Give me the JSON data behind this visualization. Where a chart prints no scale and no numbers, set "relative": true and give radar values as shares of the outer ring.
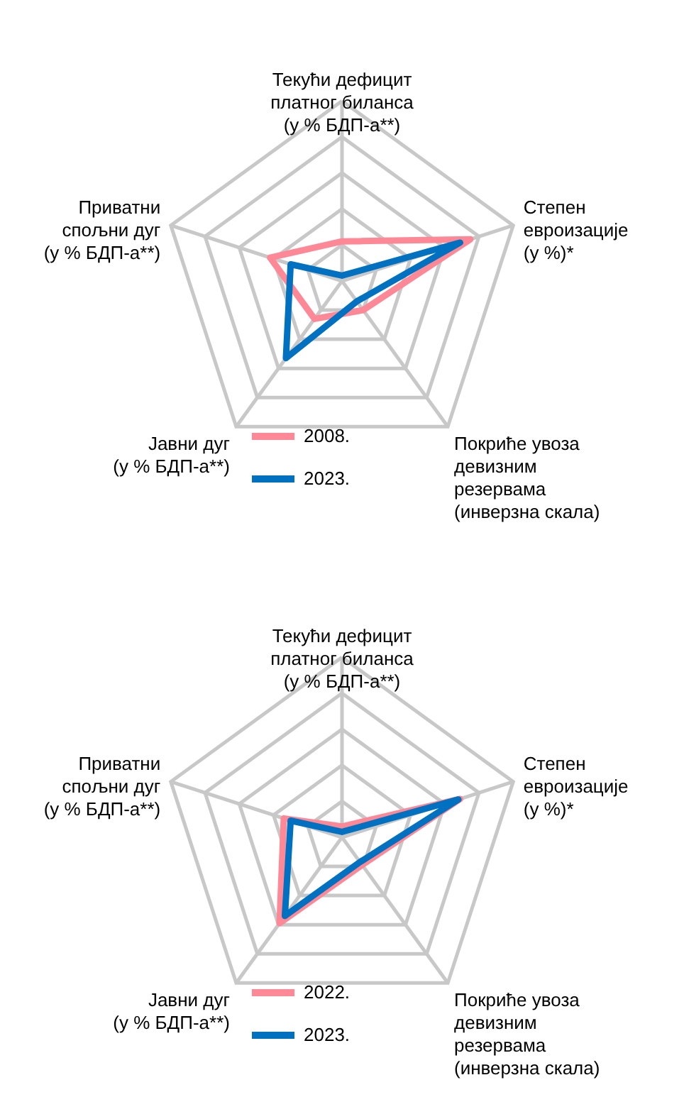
{
  "chart_data": [
    {
      "type": "radar",
      "relative": true,
      "grid": true,
      "legend": "bottom",
      "line_style": "solid",
      "categories": [
        "Текући дефицит\nплатног биланса\n(у % БДП-а**)",
        "Степен\nевроизације\n(у %)*",
        "Покриће увоза\nдевизним\nрезервама\n(инверзна скала)",
        "Јавни дуг\n(у % БДП-а**)",
        "Приватни\nспољни дуг\n(у % БДП-а**)"
      ],
      "series": [
        {
          "name": "2008.",
          "color": "#ff8896",
          "values": [
            0.22,
            0.75,
            0.2,
            0.26,
            0.42
          ]
        },
        {
          "name": "2023.",
          "color": "#0070c0",
          "values": [
            0.03,
            0.69,
            0.14,
            0.53,
            0.3
          ]
        }
      ]
    },
    {
      "type": "radar",
      "relative": true,
      "grid": true,
      "legend": "bottom",
      "line_style": "solid",
      "categories": [
        "Текући дефицит\nплатног биланса\n(у % БДП-а**)",
        "Степен\nевроизације\n(у %)*",
        "Покриће увоза\nдевизним\nрезервама\n(инверзна скала)",
        "Јавни дуг\n(у % БДП-а**)",
        "Приватни\nспољни дуг\n(у % БДП-а**)"
      ],
      "series": [
        {
          "name": "2022.",
          "color": "#ff8896",
          "values": [
            0.06,
            0.69,
            0.19,
            0.59,
            0.34
          ]
        },
        {
          "name": "2023.",
          "color": "#0070c0",
          "values": [
            0.03,
            0.68,
            0.17,
            0.54,
            0.3
          ]
        }
      ]
    }
  ]
}
